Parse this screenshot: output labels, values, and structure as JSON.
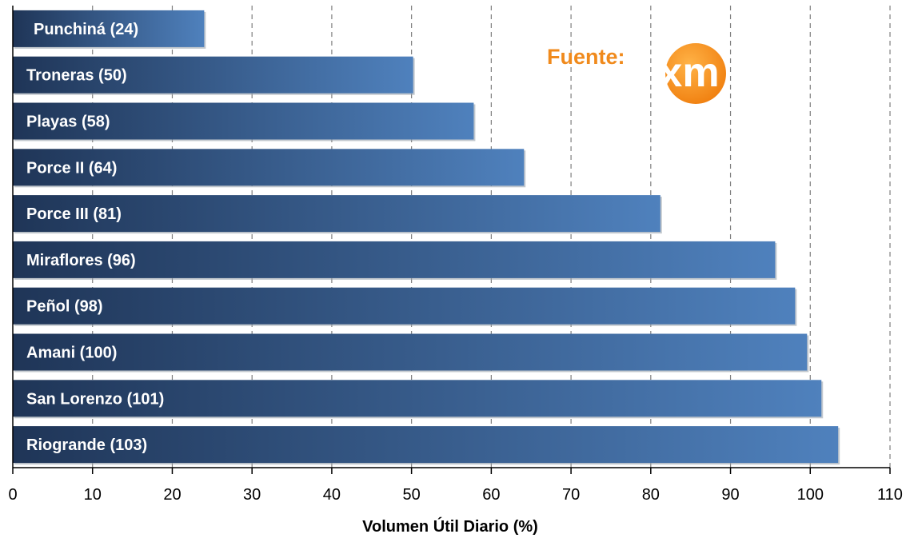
{
  "chart_data": {
    "type": "bar",
    "orientation": "horizontal",
    "categories": [
      "Punchiná (24)",
      "Troneras (50)",
      "Playas (58)",
      "Porce II (64)",
      "Porce III (81)",
      "Miraflores (96)",
      "Peñol (98)",
      "Amani (100)",
      "San Lorenzo (101)",
      "Riogrande (103)"
    ],
    "values": [
      24,
      50.2,
      57.8,
      64.1,
      81.2,
      95.6,
      98.1,
      99.6,
      101.4,
      103.5
    ],
    "xlabel": "Volumen Útil Diario (%)",
    "xlim": [
      0,
      110
    ],
    "xticks": [
      0,
      10,
      20,
      30,
      40,
      50,
      60,
      70,
      80,
      90,
      100,
      110
    ],
    "grid": "vertical dashed",
    "colors": {
      "bar_dark": "#1f3557",
      "bar_light": "#4f81bd",
      "grid": "#7f7f7f",
      "source": "#f08a1c",
      "logo": "#f07f0f"
    }
  },
  "source": {
    "label": "Fuente:",
    "logo_text": "xm"
  }
}
